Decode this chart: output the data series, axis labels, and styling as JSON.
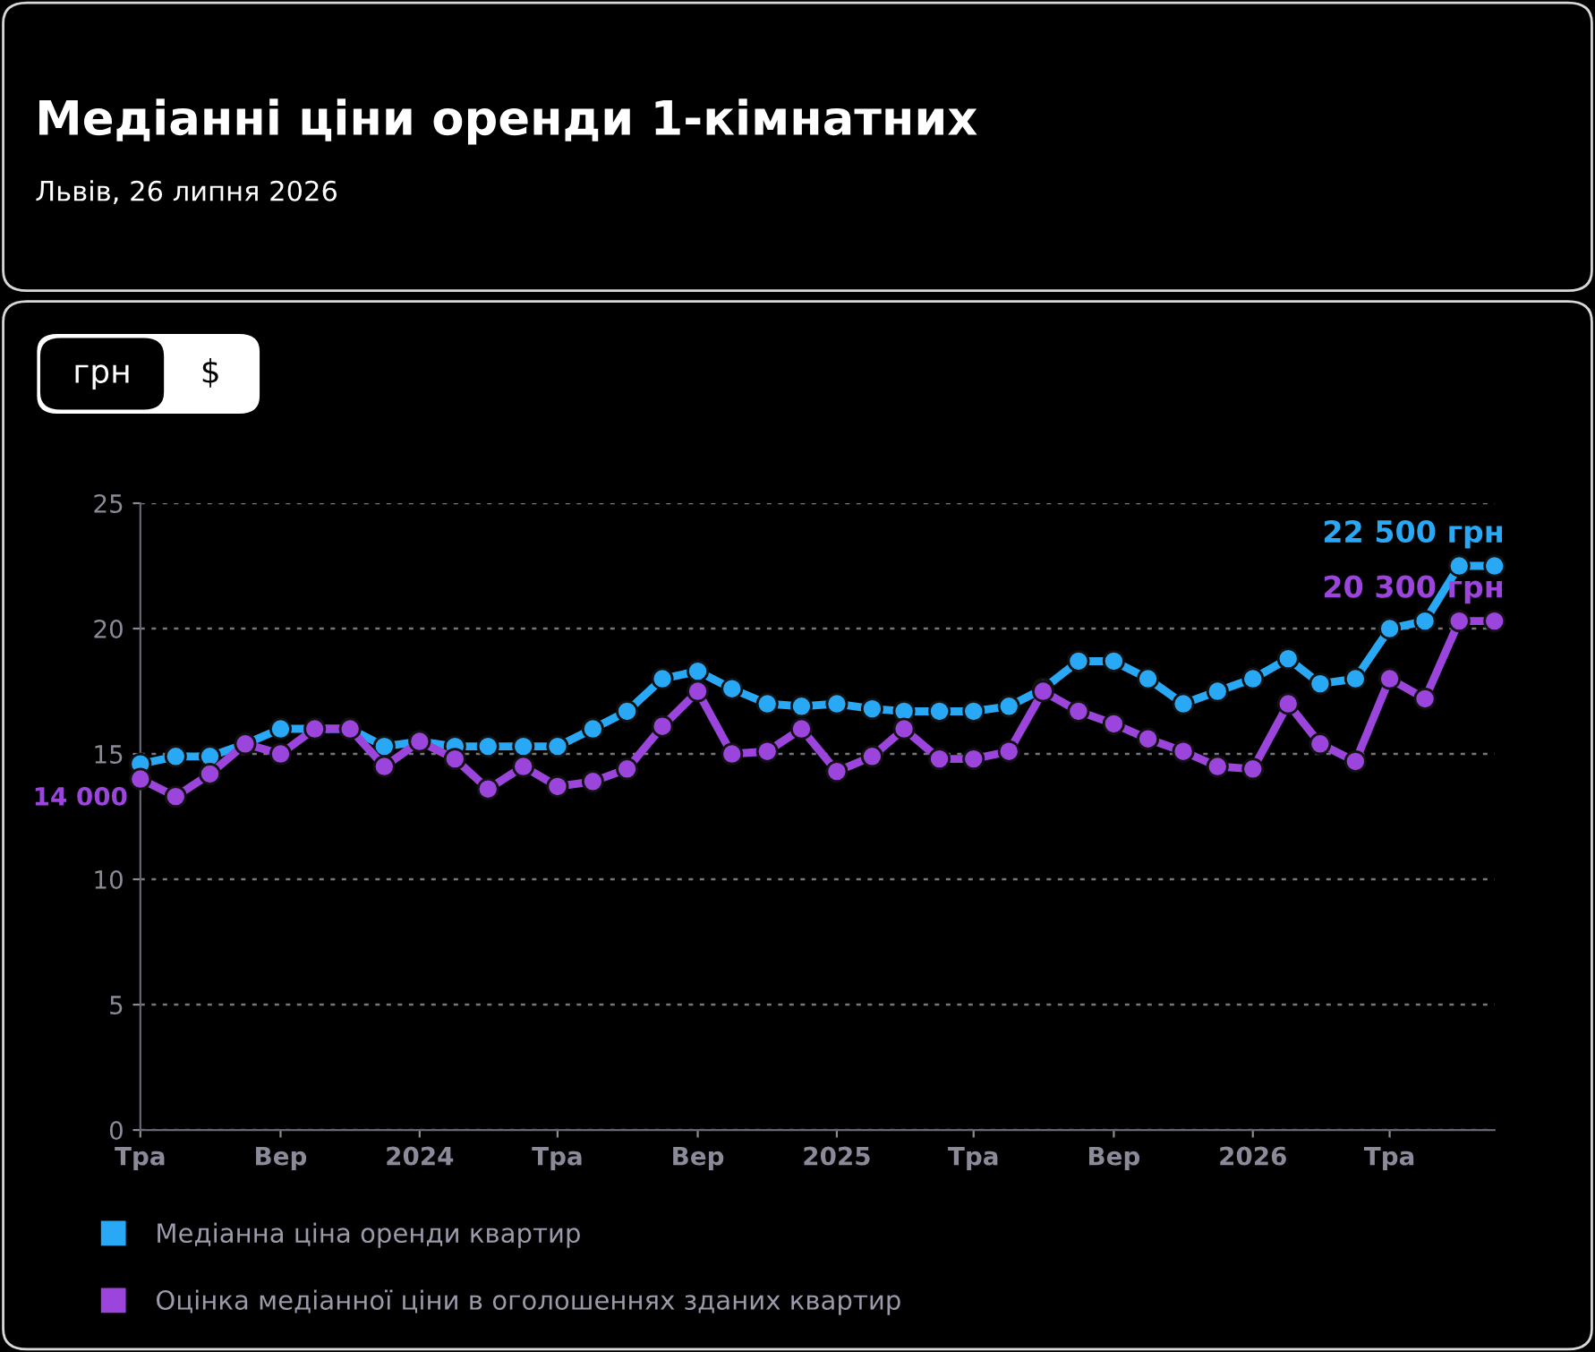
{
  "chart_data": {
    "type": "line",
    "title": "Медіанні ціни оренди 1-кімнатних",
    "subtitle": "Львів, 26 липня 2026",
    "x": [
      "2023-05",
      "2023-06",
      "2023-07",
      "2023-08",
      "2023-09",
      "2023-10",
      "2023-11",
      "2023-12",
      "2024-01",
      "2024-02",
      "2024-03",
      "2024-04",
      "2024-05",
      "2024-06",
      "2024-07",
      "2024-08",
      "2024-09",
      "2024-10",
      "2024-11",
      "2024-12",
      "2025-01",
      "2025-02",
      "2025-03",
      "2025-04",
      "2025-05",
      "2025-06",
      "2025-07",
      "2025-08",
      "2025-09",
      "2025-10",
      "2025-11",
      "2025-12",
      "2026-01",
      "2026-02",
      "2026-03",
      "2026-04",
      "2026-05",
      "2026-06",
      "2026-07",
      "2026-08"
    ],
    "series": [
      {
        "name": "Медіанна ціна оренди квартир",
        "color": "#29a9f5",
        "values": [
          14.6,
          14.9,
          14.9,
          15.4,
          16.0,
          16.0,
          16.0,
          15.3,
          15.5,
          15.3,
          15.3,
          15.3,
          15.3,
          16.0,
          16.7,
          18.0,
          18.3,
          17.6,
          17.0,
          16.9,
          17.0,
          16.8,
          16.7,
          16.7,
          16.7,
          16.9,
          17.6,
          18.7,
          18.7,
          18.0,
          17.0,
          17.5,
          18.0,
          18.8,
          17.8,
          18.0,
          20.0,
          20.3,
          22.5,
          22.5
        ]
      },
      {
        "name": "Оцінка медіанної ціни в оголошеннях зданих квартир",
        "color": "#9b45dc",
        "values": [
          14.0,
          13.3,
          14.2,
          15.4,
          15.0,
          16.0,
          16.0,
          14.5,
          15.5,
          14.8,
          13.6,
          14.5,
          13.7,
          13.9,
          14.4,
          16.1,
          17.5,
          15.0,
          15.1,
          16.0,
          14.3,
          14.9,
          16.0,
          14.8,
          14.8,
          15.1,
          17.5,
          16.7,
          16.2,
          15.6,
          15.1,
          14.5,
          14.4,
          17.0,
          15.4,
          14.7,
          18.0,
          17.2,
          20.3,
          20.3
        ]
      }
    ],
    "annotations": [
      {
        "text": "14 000",
        "x": "2023-05",
        "y": 14.0
      },
      {
        "text": "22 500 грн",
        "x": "2026-08",
        "y": 22.5
      },
      {
        "text": "20 300 грн",
        "x": "2026-08",
        "y": 20.3
      },
      "грн",
      "$"
    ],
    "xlim": [
      "2023-05",
      "2026-08"
    ],
    "xticks": [
      {
        "value": "2023-05",
        "label": "Тра"
      },
      {
        "value": "2023-09",
        "label": "Вер"
      },
      {
        "value": "2024-01",
        "label": "2024"
      },
      {
        "value": "2024-05",
        "label": "Тра"
      },
      {
        "value": "2024-09",
        "label": "Вер"
      },
      {
        "value": "2025-01",
        "label": "2025"
      },
      {
        "value": "2025-05",
        "label": "Тра"
      },
      {
        "value": "2025-09",
        "label": "Вер"
      },
      {
        "value": "2026-01",
        "label": "2026"
      },
      {
        "value": "2026-05",
        "label": "Тра"
      }
    ],
    "ylim": [
      0,
      25
    ],
    "yticks": [
      0,
      5,
      10,
      15,
      20,
      25
    ],
    "grid": "y",
    "legend": "bottom",
    "marker": "circle",
    "line_style": "solid"
  }
}
